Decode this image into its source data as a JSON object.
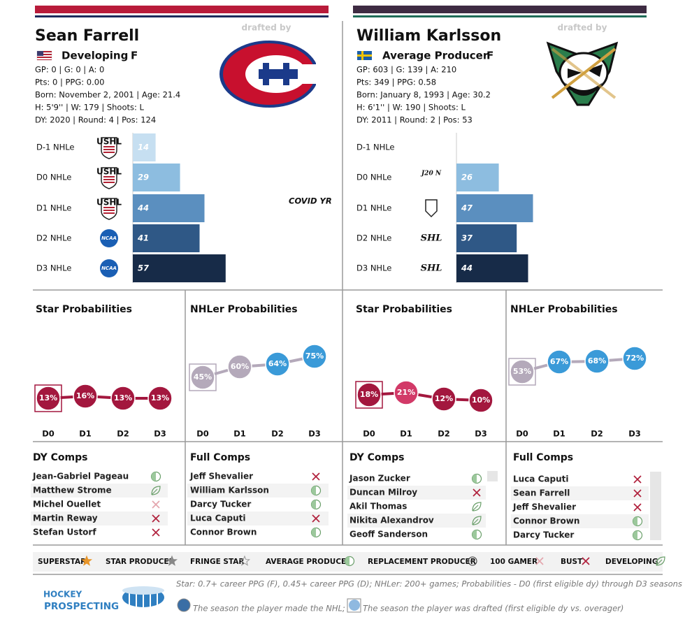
{
  "players": [
    {
      "name": "Sean Farrell",
      "tier": "Developing",
      "position": "F",
      "stats": [
        "GP: 0 | G: 0 | A: 0",
        "Pts: 0 | PPG: 0.00",
        "Born: November 2, 2001 | Age: 21.4",
        "H: 5'9'' | W: 179 | Shoots: L",
        "DY: 2020 | Round: 4 | Pos: 124"
      ],
      "drafted_by": "drafted by",
      "nhle": {
        "type": "bar",
        "categories": [
          "D-1 NHLe",
          "D0 NHLe",
          "D1 NHLe",
          "D2 NHLe",
          "D3 NHLe"
        ],
        "leagues": [
          "USHL",
          "USHL",
          "USHL",
          "NCAA",
          "NCAA"
        ],
        "values": [
          14,
          29,
          44,
          41,
          57
        ],
        "colors": [
          "#c6dff1",
          "#8dbde0",
          "#5b8fbf",
          "#2f5886",
          "#172b48"
        ],
        "note": "COVID YR"
      },
      "star": {
        "type": "line",
        "title": "Star Probabilities",
        "categories": [
          "D0",
          "D1",
          "D2",
          "D3"
        ],
        "values": [
          13,
          16,
          13,
          13
        ],
        "value_labels": [
          "13%",
          "16%",
          "13%",
          "13%"
        ],
        "color": "#a3173e",
        "point_colors": [
          "#a3173e",
          "#a3173e",
          "#a3173e",
          "#a3173e"
        ]
      },
      "nhler": {
        "type": "line",
        "title": "NHLer Probabilities",
        "categories": [
          "D0",
          "D1",
          "D2",
          "D3"
        ],
        "values": [
          45,
          60,
          64,
          75
        ],
        "value_labels": [
          "45%",
          "60%",
          "64%",
          "75%"
        ],
        "color": "#b4a9ba",
        "point_colors": [
          "#b4a9ba",
          "#b4a9ba",
          "#3a9ad8",
          "#3a9ad8"
        ]
      },
      "dy_comps": {
        "title": "DY Comps",
        "names": [
          "Jean-Gabriel Pageau",
          "Matthew Strome",
          "Michel Ouellet",
          "Martin Reway",
          "Stefan Ustorf"
        ]
      },
      "full_comps": {
        "title": "Full Comps",
        "names": [
          "Jeff Shevalier",
          "William Karlsson",
          "Darcy Tucker",
          "Luca Caputi",
          "Connor Brown"
        ]
      }
    },
    {
      "name": "William Karlsson",
      "tier": "Average Producer",
      "position": "F",
      "stats": [
        "GP: 603 | G: 139 | A: 210",
        "Pts: 349 | PPG: 0.58",
        "Born: January 8, 1993 | Age: 30.2",
        "H: 6'1'' | W: 190 | Shoots: L",
        "DY: 2011 | Round: 2 | Pos: 53"
      ],
      "drafted_by": "drafted by",
      "nhle": {
        "type": "bar",
        "categories": [
          "D-1 NHLe",
          "D0 NHLe",
          "D1 NHLe",
          "D2 NHLe",
          "D3 NHLe"
        ],
        "leagues": [
          null,
          "J20 N",
          null,
          "SHL",
          "SHL"
        ],
        "values": [
          null,
          26,
          47,
          37,
          44
        ],
        "colors": [
          "#c6dff1",
          "#8dbde0",
          "#5b8fbf",
          "#2f5886",
          "#172b48"
        ]
      },
      "star": {
        "type": "line",
        "title": "Star Probabilities",
        "categories": [
          "D0",
          "D1",
          "D2",
          "D3"
        ],
        "values": [
          18,
          21,
          12,
          10
        ],
        "value_labels": [
          "18%",
          "21%",
          "12%",
          "10%"
        ],
        "color": "#a3173e",
        "point_colors": [
          "#a3173e",
          "#d23a68",
          "#a3173e",
          "#a3173e"
        ]
      },
      "nhler": {
        "type": "line",
        "title": "NHLer Probabilities",
        "categories": [
          "D0",
          "D1",
          "D2",
          "D3"
        ],
        "values": [
          53,
          67,
          68,
          72
        ],
        "value_labels": [
          "53%",
          "67%",
          "68%",
          "72%"
        ],
        "color": "#b4a9ba",
        "point_colors": [
          "#b4a9ba",
          "#3a9ad8",
          "#3a9ad8",
          "#3a9ad8"
        ]
      },
      "dy_comps": {
        "title": "DY Comps",
        "names": [
          "Jason Zucker",
          "Duncan Milroy",
          "Akil Thomas",
          "Nikita Alexandrov",
          "Geoff Sanderson"
        ]
      },
      "full_comps": {
        "title": "Full Comps",
        "names": [
          "Luca Caputi",
          "Sean Farrell",
          "Jeff Shevalier",
          "Connor Brown",
          "Darcy Tucker"
        ]
      }
    }
  ],
  "legend": [
    "SUPERSTAR",
    "STAR PRODUCER",
    "FRINGE STAR",
    "AVERAGE PRODUCER",
    "REPLACEMENT PRODUCER",
    "100 GAMER",
    "BUST",
    "DEVELOPING"
  ],
  "footer": {
    "brand": [
      "HOCKEY",
      "PROSPECTING"
    ],
    "note": "Star: 0.7+ career PPG (F), 0.45+ career PPG (D); NHLer: 200+ games; Probabilities - D0 (first eligible dy) through D3 seasons",
    "made_nhl": "The season the player made the NHL;",
    "drafted": "The season the player was drafted (first eligible dy vs. overager)"
  }
}
